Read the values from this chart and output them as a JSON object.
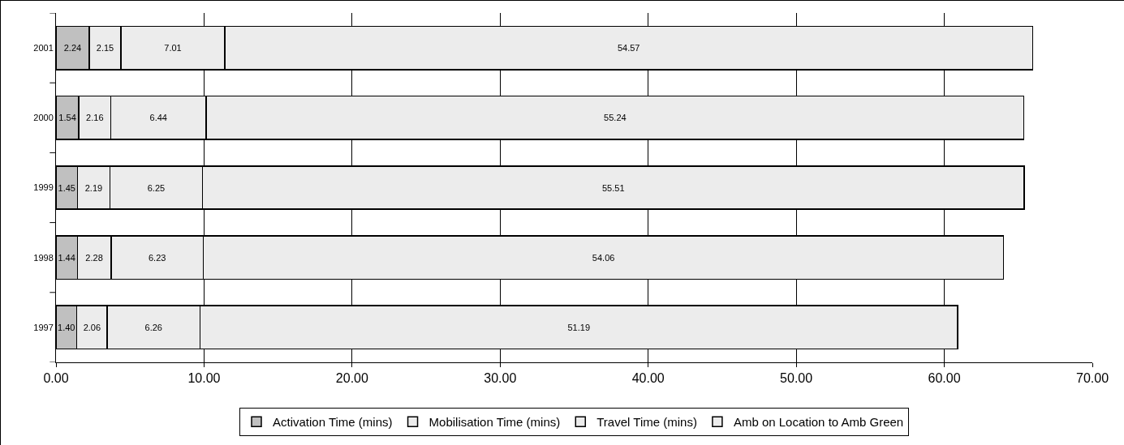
{
  "chart_data": {
    "type": "bar",
    "orientation": "horizontal",
    "stacked": true,
    "categories": [
      "2001",
      "2000",
      "1999",
      "1998",
      "1997"
    ],
    "series": [
      {
        "name": "Activation Time (mins)",
        "color": "#c0c0c0",
        "values": [
          2.24,
          1.54,
          1.45,
          1.44,
          1.4
        ],
        "value_labels": [
          "2.24",
          "1.54",
          "1.45",
          "1.44",
          "1.40"
        ]
      },
      {
        "name": "Mobilisation Time (mins)",
        "color": "#ececec",
        "values": [
          2.15,
          2.16,
          2.19,
          2.28,
          2.06
        ],
        "value_labels": [
          "2.15",
          "2.16",
          "2.19",
          "2.28",
          "2.06"
        ]
      },
      {
        "name": "Travel Time (mins)",
        "color": "#ececec",
        "values": [
          7.01,
          6.44,
          6.25,
          6.23,
          6.26
        ],
        "value_labels": [
          "7.01",
          "6.44",
          "6.25",
          "6.23",
          "6.26"
        ]
      },
      {
        "name": "Amb on Location to Amb Green",
        "color": "#ececec",
        "values": [
          54.57,
          55.24,
          55.51,
          54.06,
          51.19
        ],
        "value_labels": [
          "54.57",
          "55.24",
          "55.51",
          "54.06",
          "51.19"
        ]
      }
    ],
    "xlim": [
      0,
      70
    ],
    "xticks": [
      {
        "value": 0,
        "label": "0.00"
      },
      {
        "value": 10,
        "label": "10.00"
      },
      {
        "value": 20,
        "label": "20.00"
      },
      {
        "value": 30,
        "label": "30.00"
      },
      {
        "value": 40,
        "label": "40.00"
      },
      {
        "value": 50,
        "label": "50.00"
      },
      {
        "value": 60,
        "label": "60.00"
      },
      {
        "value": 70,
        "label": "70.00"
      }
    ],
    "grid": "x",
    "legend": "bottom"
  }
}
